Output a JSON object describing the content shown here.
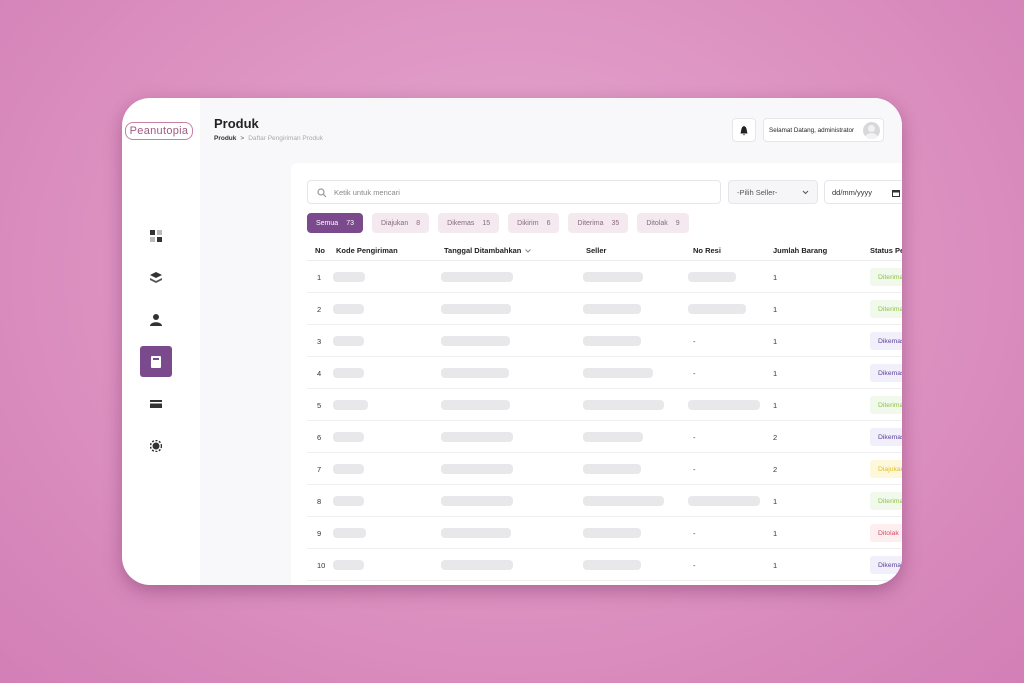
{
  "brand": "Peanutopia",
  "header": {
    "title": "Produk",
    "breadcrumb": [
      "Produk",
      ">",
      "Daftar Pengiriman Produk"
    ],
    "greeting": "Selamat Datang, administrator"
  },
  "filters": {
    "search_placeholder": "Ketik untuk mencari",
    "seller_select": "-Pilih Seller-",
    "date_placeholder": "dd/mm/yyyy"
  },
  "tabs": [
    {
      "label": "Semua",
      "count": 73
    },
    {
      "label": "Diajukan",
      "count": 8
    },
    {
      "label": "Dikemas",
      "count": 15
    },
    {
      "label": "Dikirim",
      "count": 6
    },
    {
      "label": "Diterima",
      "count": 35
    },
    {
      "label": "Ditolak",
      "count": 9
    }
  ],
  "table": {
    "columns": [
      "No",
      "Kode Pengiriman",
      "Tanggal Ditambahkan",
      "Seller",
      "No Resi",
      "Jumlah Barang",
      "Status Pengiriman"
    ],
    "rows": [
      {
        "no": 1,
        "resi": null,
        "qty": 1,
        "status": "Diterima"
      },
      {
        "no": 2,
        "resi": null,
        "qty": 1,
        "status": "Diterima"
      },
      {
        "no": 3,
        "resi": "-",
        "qty": 1,
        "status": "Dikemas"
      },
      {
        "no": 4,
        "resi": "-",
        "qty": 1,
        "status": "Dikemas"
      },
      {
        "no": 5,
        "resi": null,
        "qty": 1,
        "status": "Diterima"
      },
      {
        "no": 6,
        "resi": "-",
        "qty": 2,
        "status": "Dikemas"
      },
      {
        "no": 7,
        "resi": "-",
        "qty": 2,
        "status": "Diajukan"
      },
      {
        "no": 8,
        "resi": null,
        "qty": 1,
        "status": "Diterima"
      },
      {
        "no": 9,
        "resi": "-",
        "qty": 1,
        "status": "Ditolak"
      },
      {
        "no": 10,
        "resi": "-",
        "qty": 1,
        "status": "Dikemas"
      }
    ]
  }
}
